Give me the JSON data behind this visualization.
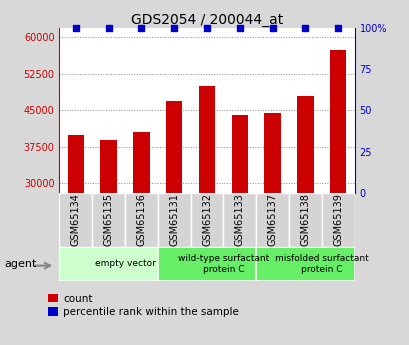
{
  "title": "GDS2054 / 200044_at",
  "samples": [
    "GSM65134",
    "GSM65135",
    "GSM65136",
    "GSM65131",
    "GSM65132",
    "GSM65133",
    "GSM65137",
    "GSM65138",
    "GSM65139"
  ],
  "counts": [
    40000,
    39000,
    40500,
    47000,
    50000,
    44000,
    44500,
    48000,
    57500
  ],
  "percentiles": [
    100,
    100,
    100,
    100,
    100,
    100,
    100,
    100,
    100
  ],
  "bar_color": "#cc0000",
  "dot_color": "#0000cc",
  "ylim_left": [
    28000,
    62000
  ],
  "yticks_left": [
    30000,
    37500,
    45000,
    52500,
    60000
  ],
  "ylim_right": [
    0,
    100
  ],
  "yticks_right": [
    0,
    25,
    50,
    75,
    100
  ],
  "groups": [
    {
      "label": "empty vector",
      "start": 0,
      "end": 3,
      "color": "#ccffcc"
    },
    {
      "label": "wild-type surfactant\nprotein C",
      "start": 3,
      "end": 6,
      "color": "#66ee66"
    },
    {
      "label": "misfolded surfactant\nprotein C",
      "start": 6,
      "end": 9,
      "color": "#66ee66"
    }
  ],
  "xlabel_agent": "agent",
  "legend_count_label": "count",
  "legend_pct_label": "percentile rank within the sample",
  "bg_color": "#d8d8d8",
  "plot_bg": "#ffffff",
  "grid_color": "#888888",
  "title_fontsize": 10,
  "tick_fontsize": 7,
  "bar_width": 0.5
}
